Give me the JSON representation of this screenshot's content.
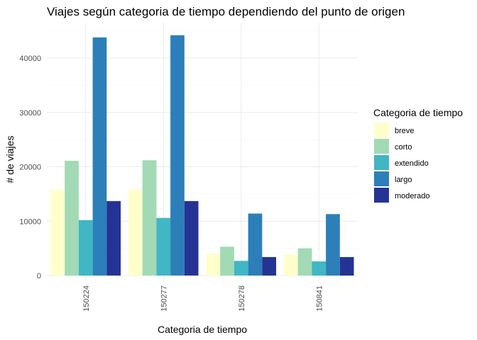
{
  "chart_data": {
    "type": "bar",
    "title": "Viajes según categoria de tiempo dependiendo del punto de origen",
    "xlabel": "Categoria de tiempo",
    "ylabel": "# de viajes",
    "categories": [
      "150224",
      "150277",
      "150278",
      "150841"
    ],
    "ylim": [
      0,
      46000
    ],
    "yticks": [
      0,
      10000,
      20000,
      30000,
      40000
    ],
    "ytick_labels": [
      "0",
      "10000",
      "20000",
      "30000",
      "40000"
    ],
    "grid": true,
    "legend": {
      "title": "Categoria de tiempo",
      "position": "right"
    },
    "series": [
      {
        "name": "breve",
        "color": "#ffffcc",
        "values": [
          15800,
          15800,
          4000,
          3900
        ]
      },
      {
        "name": "corto",
        "color": "#a1dab4",
        "values": [
          21100,
          21200,
          5300,
          5000
        ]
      },
      {
        "name": "extendido",
        "color": "#41b6c4",
        "values": [
          10200,
          10600,
          2700,
          2600
        ]
      },
      {
        "name": "largo",
        "color": "#2c7fb8",
        "values": [
          43800,
          44200,
          11400,
          11300
        ]
      },
      {
        "name": "moderado",
        "color": "#253494",
        "values": [
          13700,
          13700,
          3400,
          3400
        ]
      }
    ]
  }
}
